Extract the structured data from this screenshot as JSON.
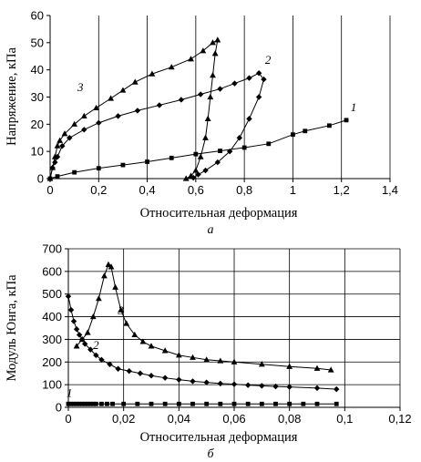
{
  "chart_data": [
    {
      "type": "line",
      "title": "",
      "xlabel": "Относительная деформация",
      "ylabel": "Напряжение, кПа",
      "panel_label": "а",
      "xlim": [
        0,
        1.4
      ],
      "ylim": [
        0,
        60
      ],
      "xticks": [
        "0",
        "0,2",
        "0,4",
        "0,6",
        "0,8",
        "1",
        "1,2",
        "1,4"
      ],
      "yticks": [
        "0",
        "10",
        "20",
        "30",
        "40",
        "50",
        "60"
      ],
      "grid": "vertical",
      "series": [
        {
          "name": "1",
          "marker": "square",
          "points": [
            [
              0,
              0
            ],
            [
              0.03,
              0.8
            ],
            [
              0.1,
              2.3
            ],
            [
              0.2,
              3.8
            ],
            [
              0.3,
              5
            ],
            [
              0.4,
              6.2
            ],
            [
              0.5,
              7.6
            ],
            [
              0.6,
              9
            ],
            [
              0.7,
              10.2
            ],
            [
              0.8,
              11.4
            ],
            [
              0.9,
              12.8
            ],
            [
              1.0,
              16.2
            ],
            [
              1.05,
              17.5
            ],
            [
              1.15,
              19.5
            ],
            [
              1.22,
              21.5
            ]
          ]
        },
        {
          "name": "2",
          "marker": "diamond",
          "points": [
            [
              0,
              0
            ],
            [
              0.01,
              4
            ],
            [
              0.02,
              6
            ],
            [
              0.03,
              8
            ],
            [
              0.05,
              12
            ],
            [
              0.08,
              15
            ],
            [
              0.14,
              18
            ],
            [
              0.2,
              20.5
            ],
            [
              0.28,
              23
            ],
            [
              0.36,
              25
            ],
            [
              0.45,
              27
            ],
            [
              0.54,
              29
            ],
            [
              0.62,
              31
            ],
            [
              0.7,
              33
            ],
            [
              0.76,
              35
            ],
            [
              0.82,
              37
            ],
            [
              0.86,
              38.8
            ],
            [
              0.88,
              36.5
            ],
            [
              0.86,
              30
            ],
            [
              0.82,
              22
            ],
            [
              0.78,
              15
            ],
            [
              0.74,
              10
            ],
            [
              0.69,
              6
            ],
            [
              0.64,
              3
            ],
            [
              0.61,
              1.5
            ],
            [
              0.59,
              0.3
            ]
          ]
        },
        {
          "name": "3",
          "marker": "triangle",
          "points": [
            [
              0,
              0
            ],
            [
              0.01,
              4
            ],
            [
              0.02,
              8
            ],
            [
              0.03,
              12
            ],
            [
              0.04,
              14
            ],
            [
              0.06,
              16.5
            ],
            [
              0.1,
              20
            ],
            [
              0.14,
              23
            ],
            [
              0.19,
              26
            ],
            [
              0.25,
              29.5
            ],
            [
              0.3,
              32.5
            ],
            [
              0.35,
              35.5
            ],
            [
              0.42,
              38.5
            ],
            [
              0.5,
              41
            ],
            [
              0.58,
              44
            ],
            [
              0.63,
              47
            ],
            [
              0.67,
              50
            ],
            [
              0.69,
              51
            ],
            [
              0.68,
              46
            ],
            [
              0.67,
              38
            ],
            [
              0.66,
              30
            ],
            [
              0.65,
              22
            ],
            [
              0.64,
              15
            ],
            [
              0.62,
              8
            ],
            [
              0.6,
              3
            ],
            [
              0.58,
              1
            ],
            [
              0.56,
              0
            ]
          ]
        }
      ]
    },
    {
      "type": "line",
      "title": "",
      "xlabel": "Относительная деформация",
      "ylabel": "Модуль Юнга, кПа",
      "panel_label": "б",
      "xlim": [
        0,
        0.12
      ],
      "ylim": [
        0,
        700
      ],
      "xticks": [
        "0",
        "0,02",
        "0,04",
        "0,06",
        "0,08",
        "0,1",
        "0,12"
      ],
      "yticks": [
        "0",
        "100",
        "200",
        "300",
        "400",
        "500",
        "600",
        "700"
      ],
      "grid": "both",
      "series": [
        {
          "name": "1",
          "marker": "square",
          "points": [
            [
              0,
              15
            ],
            [
              0.001,
              15
            ],
            [
              0.002,
              15
            ],
            [
              0.003,
              15
            ],
            [
              0.004,
              15
            ],
            [
              0.005,
              15
            ],
            [
              0.006,
              15
            ],
            [
              0.007,
              15
            ],
            [
              0.008,
              15
            ],
            [
              0.009,
              15
            ],
            [
              0.01,
              15
            ],
            [
              0.012,
              15
            ],
            [
              0.014,
              15
            ],
            [
              0.016,
              15
            ],
            [
              0.02,
              15
            ],
            [
              0.025,
              15
            ],
            [
              0.03,
              15
            ],
            [
              0.035,
              15
            ],
            [
              0.04,
              15
            ],
            [
              0.045,
              15
            ],
            [
              0.05,
              15
            ],
            [
              0.055,
              15
            ],
            [
              0.06,
              15
            ],
            [
              0.065,
              15
            ],
            [
              0.07,
              15
            ],
            [
              0.075,
              15
            ],
            [
              0.08,
              15
            ],
            [
              0.085,
              15
            ],
            [
              0.09,
              15
            ],
            [
              0.097,
              15
            ]
          ]
        },
        {
          "name": "2",
          "marker": "diamond",
          "points": [
            [
              0,
              490
            ],
            [
              0.001,
              430
            ],
            [
              0.002,
              380
            ],
            [
              0.003,
              345
            ],
            [
              0.004,
              320
            ],
            [
              0.005,
              300
            ],
            [
              0.006,
              280
            ],
            [
              0.008,
              255
            ],
            [
              0.01,
              230
            ],
            [
              0.012,
              210
            ],
            [
              0.015,
              190
            ],
            [
              0.018,
              170
            ],
            [
              0.022,
              160
            ],
            [
              0.026,
              150
            ],
            [
              0.03,
              140
            ],
            [
              0.035,
              130
            ],
            [
              0.04,
              122
            ],
            [
              0.045,
              115
            ],
            [
              0.05,
              110
            ],
            [
              0.055,
              105
            ],
            [
              0.06,
              102
            ],
            [
              0.065,
              98
            ],
            [
              0.07,
              95
            ],
            [
              0.075,
              92
            ],
            [
              0.08,
              90
            ],
            [
              0.09,
              85
            ],
            [
              0.097,
              80
            ]
          ]
        },
        {
          "name": "3",
          "marker": "triangle",
          "points": [
            [
              0.003,
              270
            ],
            [
              0.005,
              300
            ],
            [
              0.007,
              330
            ],
            [
              0.009,
              400
            ],
            [
              0.011,
              480
            ],
            [
              0.013,
              580
            ],
            [
              0.0145,
              630
            ],
            [
              0.0155,
              620
            ],
            [
              0.017,
              530
            ],
            [
              0.019,
              430
            ],
            [
              0.021,
              370
            ],
            [
              0.024,
              320
            ],
            [
              0.027,
              290
            ],
            [
              0.03,
              270
            ],
            [
              0.035,
              250
            ],
            [
              0.04,
              230
            ],
            [
              0.045,
              220
            ],
            [
              0.05,
              210
            ],
            [
              0.055,
              205
            ],
            [
              0.06,
              200
            ],
            [
              0.07,
              190
            ],
            [
              0.08,
              180
            ],
            [
              0.09,
              172
            ],
            [
              0.095,
              165
            ]
          ]
        }
      ]
    }
  ]
}
